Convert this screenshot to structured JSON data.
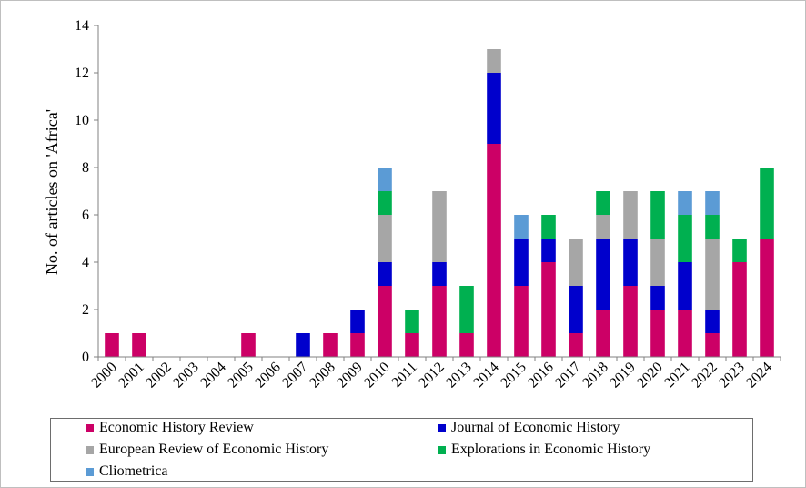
{
  "chart_data": {
    "type": "bar",
    "stacked": true,
    "title": "",
    "xlabel": "",
    "ylabel": "No. of articles on 'Africa'",
    "ylim": [
      0,
      14
    ],
    "yticks": [
      0,
      2,
      4,
      6,
      8,
      10,
      12,
      14
    ],
    "grid": false,
    "legend_position": "bottom",
    "categories": [
      "2000",
      "2001",
      "2002",
      "2003",
      "2004",
      "2005",
      "2006",
      "2007",
      "2008",
      "2009",
      "2010",
      "2011",
      "2012",
      "2013",
      "2014",
      "2015",
      "2016",
      "2017",
      "2018",
      "2019",
      "2020",
      "2021",
      "2022",
      "2023",
      "2024"
    ],
    "series": [
      {
        "name": "Economic History Review",
        "color": "#cc0066",
        "values": [
          1,
          1,
          0,
          0,
          0,
          1,
          0,
          0,
          1,
          1,
          3,
          1,
          3,
          1,
          9,
          3,
          4,
          1,
          2,
          3,
          2,
          2,
          1,
          4,
          5
        ]
      },
      {
        "name": "Journal of Economic History",
        "color": "#0000cc",
        "values": [
          0,
          0,
          0,
          0,
          0,
          0,
          0,
          1,
          0,
          1,
          1,
          0,
          1,
          0,
          3,
          2,
          1,
          2,
          3,
          2,
          1,
          2,
          1,
          0,
          0
        ]
      },
      {
        "name": "European Review of Economic History",
        "color": "#a6a6a6",
        "values": [
          0,
          0,
          0,
          0,
          0,
          0,
          0,
          0,
          0,
          0,
          2,
          0,
          3,
          0,
          1,
          0,
          0,
          2,
          1,
          2,
          2,
          0,
          3,
          0,
          0
        ]
      },
      {
        "name": "Explorations in Economic History",
        "color": "#00b050",
        "values": [
          0,
          0,
          0,
          0,
          0,
          0,
          0,
          0,
          0,
          0,
          1,
          1,
          0,
          2,
          0,
          0,
          1,
          0,
          1,
          0,
          2,
          2,
          1,
          1,
          3
        ]
      },
      {
        "name": "Cliometrica",
        "color": "#5b9bd5",
        "values": [
          0,
          0,
          0,
          0,
          0,
          0,
          0,
          0,
          0,
          0,
          1,
          0,
          0,
          0,
          0,
          1,
          0,
          0,
          0,
          0,
          0,
          1,
          1,
          0,
          0
        ]
      }
    ]
  }
}
